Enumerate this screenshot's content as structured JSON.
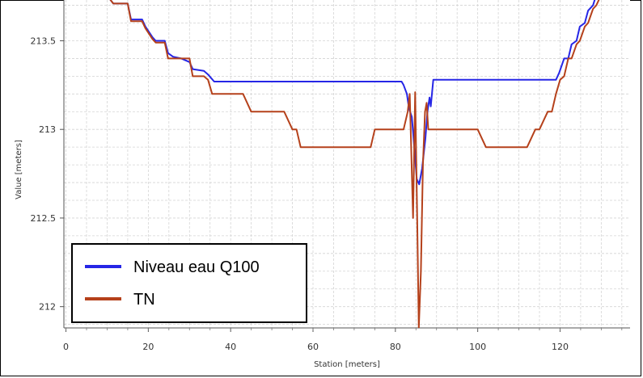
{
  "chart_data": {
    "type": "line",
    "title": "",
    "xlabel": "Station [meters]",
    "ylabel": "Value [meters]",
    "xlim": [
      -0.5,
      137
    ],
    "ylim": [
      211.88,
      213.73
    ],
    "x_ticks": [
      0,
      20,
      40,
      60,
      80,
      100,
      120
    ],
    "y_ticks": [
      212,
      212.5,
      213,
      213.5
    ],
    "y_tick_labels": [
      "212",
      "212.5",
      "213",
      "213.5"
    ],
    "grid": true,
    "legend_position": "bottom-left",
    "series": [
      {
        "name": "Niveau eau Q100",
        "color": "#2626e6",
        "x": [
          10.5,
          11.5,
          15,
          15.8,
          18.5,
          19.3,
          21,
          21.8,
          24,
          24.8,
          26,
          28,
          30,
          30.8,
          33.5,
          34.5,
          36,
          37,
          45,
          60,
          75,
          80,
          81.5,
          82,
          82.8,
          83.3,
          84,
          84.6,
          85.2,
          85.8,
          86.5,
          87.3,
          87.8,
          88.3,
          88.6,
          89.2,
          100,
          110,
          119,
          119.8,
          121,
          122,
          122.8,
          124,
          124.8,
          126,
          126.8,
          128,
          128.8,
          130,
          130.8,
          132
        ],
        "y": [
          213.74,
          213.71,
          213.71,
          213.62,
          213.62,
          213.58,
          213.52,
          213.5,
          213.5,
          213.43,
          213.41,
          213.4,
          213.38,
          213.34,
          213.33,
          213.31,
          213.27,
          213.27,
          213.27,
          213.27,
          213.27,
          213.27,
          213.27,
          213.25,
          213.2,
          213.12,
          213.07,
          212.9,
          212.72,
          212.69,
          212.78,
          212.95,
          213.1,
          213.18,
          213.13,
          213.28,
          213.28,
          213.28,
          213.28,
          213.32,
          213.4,
          213.4,
          213.48,
          213.5,
          213.58,
          213.6,
          213.67,
          213.7,
          213.76,
          213.78,
          213.85,
          213.88
        ]
      },
      {
        "name": "TN",
        "color": "#b5411b",
        "x": [
          10.5,
          11.5,
          15,
          15.8,
          18.5,
          19.3,
          21,
          21.8,
          24,
          24.8,
          30,
          30.8,
          33.5,
          34.5,
          35.5,
          36.5,
          43,
          45,
          53,
          55,
          56,
          57,
          74,
          75,
          80,
          82,
          83,
          83.5,
          84.3,
          84.8,
          85.3,
          85.7,
          86.2,
          86.7,
          87.2,
          87.6,
          88,
          88.4,
          100,
          101,
          102,
          112,
          113,
          114,
          115,
          116,
          117,
          118,
          119,
          120,
          121,
          122,
          122.8,
          124,
          124.8,
          126,
          126.8,
          128,
          128.8,
          130,
          130.8,
          132
        ],
        "y": [
          213.74,
          213.71,
          213.71,
          213.61,
          213.61,
          213.57,
          213.51,
          213.49,
          213.49,
          213.4,
          213.4,
          213.3,
          213.3,
          213.28,
          213.2,
          213.2,
          213.2,
          213.1,
          213.1,
          213.0,
          213.0,
          212.9,
          212.9,
          213.0,
          213.0,
          213.0,
          213.1,
          213.2,
          212.5,
          213.21,
          212.5,
          211.88,
          212.2,
          212.8,
          213.1,
          213.15,
          213.0,
          213.0,
          213.0,
          212.95,
          212.9,
          212.9,
          212.95,
          213.0,
          213.0,
          213.05,
          213.1,
          213.1,
          213.2,
          213.28,
          213.3,
          213.4,
          213.4,
          213.48,
          213.5,
          213.58,
          213.6,
          213.68,
          213.7,
          213.76,
          213.78,
          213.86
        ]
      }
    ]
  }
}
